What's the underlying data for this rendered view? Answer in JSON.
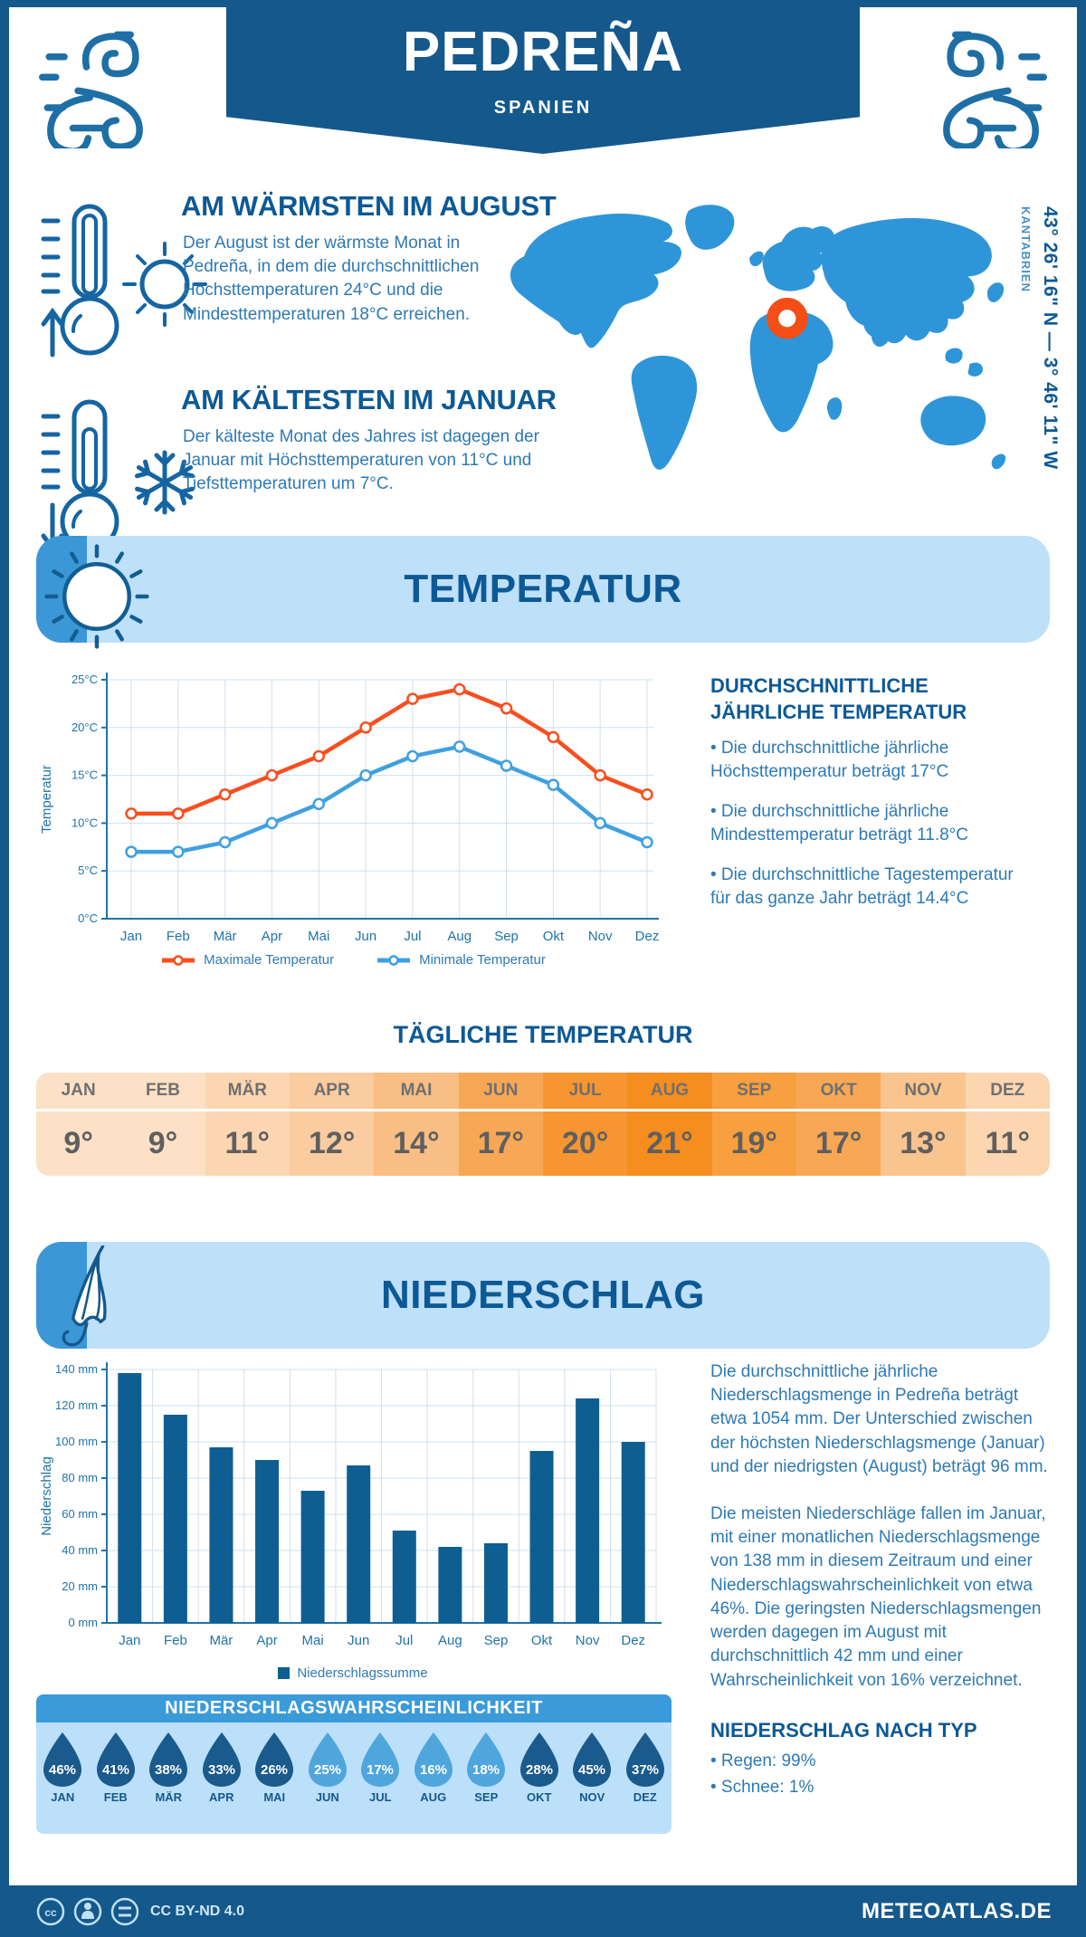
{
  "header": {
    "title": "PEDREÑA",
    "subtitle": "SPANIEN"
  },
  "location": {
    "coordinates": "43° 26' 16\" N — 3° 46' 11\" W",
    "region": "KANTABRIEN"
  },
  "highlights": [
    {
      "title": "AM WÄRMSTEN IM AUGUST",
      "text": "Der August ist der wärmste Monat in Pedreña, in dem die durchschnittlichen Höchsttemperaturen 24°C und die Mindesttemperaturen 18°C erreichen."
    },
    {
      "title": "AM KÄLTESTEN IM JANUAR",
      "text": "Der kälteste Monat des Jahres ist dagegen der Januar mit Höchsttemperaturen von 11°C und Tiefsttemperaturen um 7°C."
    }
  ],
  "sections": {
    "temperature": "TEMPERATUR",
    "precipitation": "NIEDERSCHLAG"
  },
  "annual_summary": {
    "title": "DURCHSCHNITTLICHE JÄHRLICHE TEMPERATUR",
    "bullets": [
      "• Die durchschnittliche jährliche Höchsttemperatur beträgt 17°C",
      "• Die durchschnittliche jährliche Mindesttemperatur beträgt 11.8°C",
      "• Die durchschnittliche Tagestemperatur für das ganze Jahr beträgt 14.4°C"
    ]
  },
  "precip_text": {
    "p1": "Die durchschnittliche jährliche Niederschlagsmenge in Pedreña beträgt etwa 1054 mm. Der Unterschied zwischen der höchsten Niederschlagsmenge (Januar) und der niedrigsten (August) beträgt 96 mm.",
    "p2": "Die meisten Niederschläge fallen im Januar, mit einer monatlichen Niederschlagsmenge von 138 mm in diesem Zeitraum und einer Niederschlagswahrscheinlichkeit von etwa 46%. Die geringsten Niederschlagsmengen werden dagegen im August mit durchschnittlich 42 mm und einer Wahrscheinlichkeit von 16% verzeichnet.",
    "type_title": "NIEDERSCHLAG NACH TYP",
    "types": [
      "• Regen: 99%",
      "• Schnee: 1%"
    ]
  },
  "footer": {
    "license": "CC BY-ND 4.0",
    "site": "METEOATLAS.DE"
  },
  "colors": {
    "dark_blue": "#15588C",
    "heading": "#0D5995",
    "body_text": "#2E79B4",
    "banner_light": "#BEE0F8",
    "banner_tab": "#3C97D6",
    "map_land": "#2E96D8",
    "marker_orange": "#F44D16",
    "axis": "#2173A8",
    "grid": "#CFE0EE"
  },
  "chart_data": [
    {
      "type": "line",
      "title": "Monatliche Temperatur",
      "categories": [
        "Jan",
        "Feb",
        "Mär",
        "Apr",
        "Mai",
        "Jun",
        "Jul",
        "Aug",
        "Sep",
        "Okt",
        "Nov",
        "Dez"
      ],
      "series": [
        {
          "name": "Maximale Temperatur",
          "color": "#F94F1E",
          "values": [
            11,
            11,
            13,
            15,
            17,
            20,
            23,
            24,
            22,
            19,
            15,
            13
          ]
        },
        {
          "name": "Minimale Temperatur",
          "color": "#3FA0E1",
          "values": [
            7,
            7,
            8,
            10,
            12,
            15,
            17,
            18,
            16,
            14,
            10,
            8
          ]
        }
      ],
      "xlabel": "",
      "ylabel": "Temperatur",
      "ylim": [
        0,
        25
      ],
      "ytick_step": 5,
      "ytick_suffix": "°C",
      "grid": true,
      "legend_position": "bottom"
    },
    {
      "type": "table",
      "title": "TÄGLICHE TEMPERATUR",
      "categories": [
        "JAN",
        "FEB",
        "MÄR",
        "APR",
        "MAI",
        "JUN",
        "JUL",
        "AUG",
        "SEP",
        "OKT",
        "NOV",
        "DEZ"
      ],
      "values": [
        "9°",
        "9°",
        "11°",
        "12°",
        "14°",
        "17°",
        "20°",
        "21°",
        "19°",
        "17°",
        "13°",
        "11°"
      ],
      "cell_colors": [
        "#FCE1C6",
        "#FCE1C6",
        "#FBD6B1",
        "#FACCA0",
        "#F9BE84",
        "#F8A855",
        "#F79630",
        "#F68D1F",
        "#F89F40",
        "#F8A855",
        "#F9C48E",
        "#FBD6B1"
      ]
    },
    {
      "type": "bar",
      "title": "Niederschlagssumme",
      "categories": [
        "Jan",
        "Feb",
        "Mär",
        "Apr",
        "Mai",
        "Jun",
        "Jul",
        "Aug",
        "Sep",
        "Okt",
        "Nov",
        "Dez"
      ],
      "values": [
        138,
        115,
        97,
        90,
        73,
        87,
        51,
        42,
        44,
        95,
        124,
        100
      ],
      "legend": "Niederschlagssumme",
      "bar_color": "#0E5E92",
      "xlabel": "",
      "ylabel": "Niederschlag",
      "ylim": [
        0,
        140
      ],
      "ytick_step": 20,
      "ytick_suffix": " mm",
      "grid": true
    },
    {
      "type": "bar",
      "title": "NIEDERSCHLAGSWAHRSCHEINLICHKEIT",
      "categories": [
        "JAN",
        "FEB",
        "MÄR",
        "APR",
        "MAI",
        "JUN",
        "JUL",
        "AUG",
        "SEP",
        "OKT",
        "NOV",
        "DEZ"
      ],
      "values": [
        46,
        41,
        38,
        33,
        26,
        25,
        17,
        16,
        18,
        28,
        45,
        37
      ],
      "value_suffix": "%",
      "drop_colors": [
        "#1A5A8C",
        "#1A5A8C",
        "#1A5A8C",
        "#1A5A8C",
        "#1A5A8C",
        "#4FA6DD",
        "#4FA6DD",
        "#4FA6DD",
        "#4FA6DD",
        "#1A5A8C",
        "#1A5A8C",
        "#1A5A8C"
      ]
    }
  ]
}
